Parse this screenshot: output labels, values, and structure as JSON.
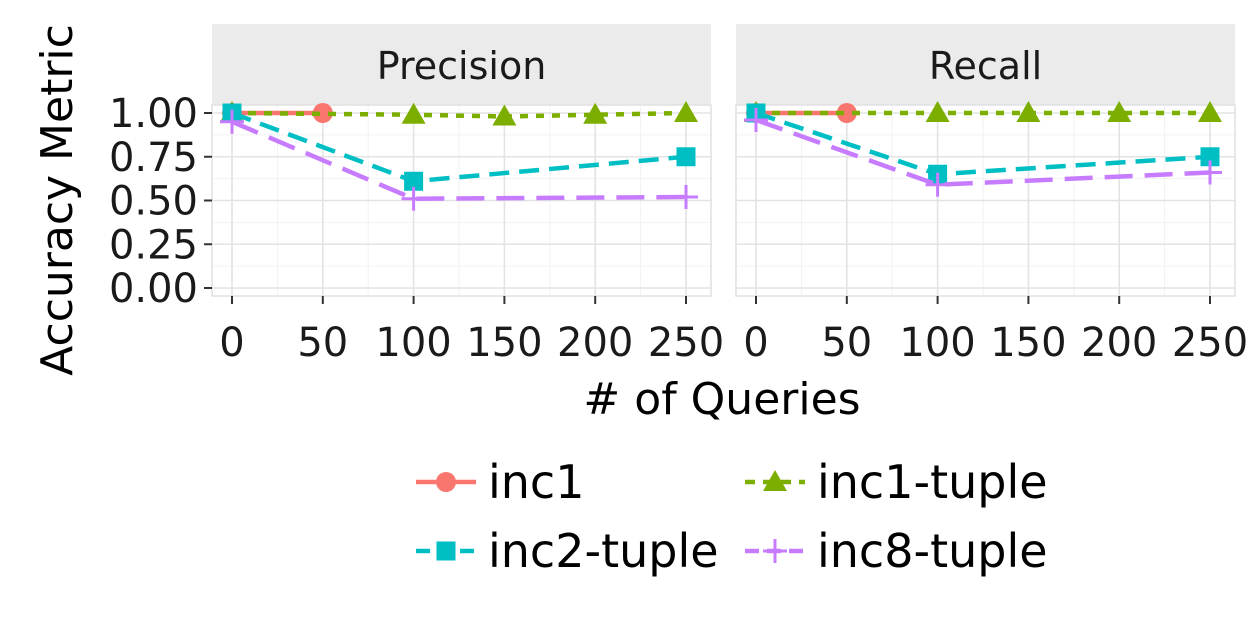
{
  "chart_data": {
    "type": "line",
    "ylabel": "Accuracy Metric",
    "xlabel": "# of Queries",
    "ylim": [
      0,
      1
    ],
    "xlim": [
      0,
      250
    ],
    "yticks": [
      "0.00",
      "0.25",
      "0.50",
      "0.75",
      "1.00"
    ],
    "xticks": [
      "0",
      "50",
      "100",
      "150",
      "200",
      "250"
    ],
    "legend_position": "bottom",
    "grid": true,
    "panels": [
      {
        "title": "Precision",
        "series": [
          {
            "name": "inc1",
            "x": [
              0,
              50
            ],
            "values": [
              1.0,
              1.0
            ]
          },
          {
            "name": "inc1-tuple",
            "x": [
              0,
              100,
              150,
              200,
              250
            ],
            "values": [
              1.0,
              0.99,
              0.98,
              0.99,
              1.0
            ]
          },
          {
            "name": "inc2-tuple",
            "x": [
              0,
              100,
              250
            ],
            "values": [
              1.0,
              0.61,
              0.75
            ]
          },
          {
            "name": "inc8-tuple",
            "x": [
              0,
              100,
              250
            ],
            "values": [
              0.95,
              0.51,
              0.52
            ]
          }
        ]
      },
      {
        "title": "Recall",
        "series": [
          {
            "name": "inc1",
            "x": [
              0,
              50
            ],
            "values": [
              1.0,
              1.0
            ]
          },
          {
            "name": "inc1-tuple",
            "x": [
              0,
              100,
              150,
              200,
              250
            ],
            "values": [
              1.0,
              1.0,
              1.0,
              1.0,
              1.0
            ]
          },
          {
            "name": "inc2-tuple",
            "x": [
              0,
              100,
              250
            ],
            "values": [
              1.0,
              0.65,
              0.75
            ]
          },
          {
            "name": "inc8-tuple",
            "x": [
              0,
              100,
              250
            ],
            "values": [
              0.96,
              0.59,
              0.66
            ]
          }
        ]
      }
    ]
  },
  "series_styles": {
    "inc1": {
      "color": "#F8766D",
      "dash": "",
      "marker": "circle"
    },
    "inc1-tuple": {
      "color": "#7CAE00",
      "dash": "8,8",
      "marker": "triangle"
    },
    "inc2-tuple": {
      "color": "#00BFC4",
      "dash": "20,10",
      "marker": "square"
    },
    "inc8-tuple": {
      "color": "#C77CFF",
      "dash": "28,12",
      "marker": "plus"
    }
  },
  "legend": [
    {
      "key": "inc1",
      "label": "inc1"
    },
    {
      "key": "inc1-tuple",
      "label": "inc1-tuple"
    },
    {
      "key": "inc2-tuple",
      "label": "inc2-tuple"
    },
    {
      "key": "inc8-tuple",
      "label": "inc8-tuple"
    }
  ]
}
